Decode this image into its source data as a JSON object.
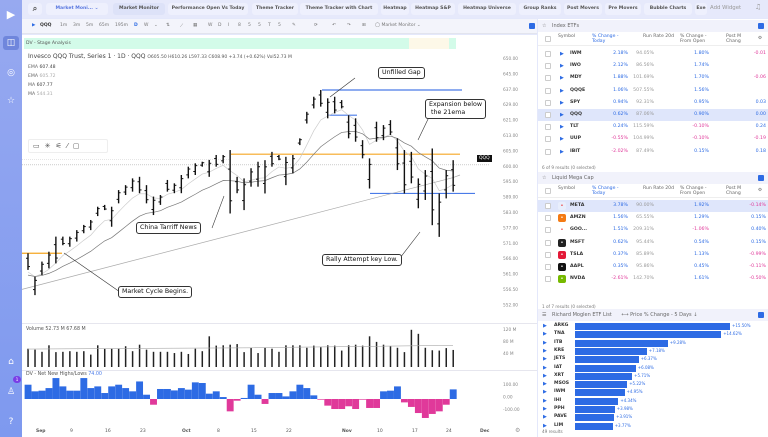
{
  "sidebar": {
    "items": [
      "logo",
      "chart-view",
      "target",
      "star",
      "gift",
      "user",
      "help"
    ],
    "badge": "1"
  },
  "topbar": {
    "search_icon": "search",
    "workspace": "Market Moni...",
    "tabs": [
      "Market Monitor",
      "Performance Open Vs Today",
      "Theme Tracker",
      "Theme Tracker with Chart",
      "Heatmap",
      "Heatmap S&P",
      "Heatmap Universe",
      "Group Ranks",
      "Post Movers",
      "Pre Movers",
      "Bubble Charts",
      "Exe"
    ],
    "add_widget": "Add Widget"
  },
  "toolbar": {
    "symbol": "QQQ",
    "intervals": [
      "1m",
      "3m",
      "5m",
      "65m",
      "195m",
      "D",
      "W"
    ],
    "active_interval": "D",
    "letters": [
      "W",
      "D",
      "I",
      "8",
      "5",
      "5",
      "T",
      "5"
    ],
    "layout": "Market Monitor"
  },
  "chart": {
    "study": "DV - Stage Analysis",
    "title": "Invesco QQQ Trust, Series 1 · 1D · QQQ",
    "ohlc": "O605.50 H610.26 L597.33 C608.90 +3.74 (+0.62%) Vol52.73 M",
    "indicators": [
      {
        "name": "EMA",
        "value": "607.48"
      },
      {
        "name": "EMA",
        "value": "605.72"
      },
      {
        "name": "MA",
        "value": "607.77"
      },
      {
        "name": "MA",
        "value": "544.31"
      }
    ],
    "price_tag": "QQQ",
    "price_labels": [
      "650.00",
      "645.00",
      "637.00",
      "629.00",
      "621.00",
      "613.00",
      "605.00",
      "600.00",
      "595.00",
      "589.00",
      "583.00",
      "577.00",
      "571.00",
      "566.00",
      "561.00",
      "556.50",
      "552.00"
    ],
    "annotations": {
      "gap": "Unfilled Gap",
      "expansion": "Expansion below\n the 21ema",
      "china": "China Tarriff News",
      "cycle": "Market Cycle Begins.",
      "rally": "Rally Attempt key Low."
    },
    "volume_label": "Volume  52.73 M  67.68 M",
    "volume_axis": [
      "120 M",
      "80 M",
      "40 M"
    ],
    "nhnl_label": "DV - Net New Highs/Lows",
    "nhnl_value": "74.00",
    "nhnl_axis": [
      "100.00",
      "0.00",
      "-100.00"
    ],
    "dates": [
      "Sep",
      "9",
      "16",
      "23",
      "Oct",
      "8",
      "15",
      "22",
      "Nov",
      "10",
      "17",
      "24",
      "Dec"
    ],
    "colors": {
      "up": "#2d6be4",
      "down": "#e0399a",
      "orange": "#f5a623",
      "blue": "#4a7be8"
    }
  },
  "chart_data": {
    "type": "ohlc",
    "bars_high_low": [
      [
        574.9,
        568.5
      ],
      [
        565.9,
        558.8
      ],
      [
        571.7,
        566.5
      ],
      [
        575.5,
        569.1
      ],
      [
        581.3,
        571
      ],
      [
        581.3,
        578
      ],
      [
        581.3,
        577.4
      ],
      [
        583.8,
        579.4
      ],
      [
        585.8,
        582.6
      ],
      [
        587.7,
        583.8
      ],
      [
        592.8,
        589.2
      ],
      [
        593.5,
        591.5
      ],
      [
        592.8,
        585.1
      ],
      [
        599.2,
        594.1
      ],
      [
        601.1,
        597.3
      ],
      [
        603.7,
        598.6
      ],
      [
        604.3,
        598
      ],
      [
        601.1,
        594.1
      ],
      [
        596.7,
        589.6
      ],
      [
        597.3,
        593.5
      ],
      [
        603.1,
        598.6
      ],
      [
        601.8,
        598
      ],
      [
        605,
        598
      ],
      [
        608.2,
        603.7
      ],
      [
        609.5,
        605
      ],
      [
        610.1,
        608.2
      ],
      [
        610.8,
        604.3
      ],
      [
        612.7,
        608.2
      ],
      [
        612.7,
        609.5
      ],
      [
        614.6,
        590.2
      ],
      [
        604.3,
        598
      ],
      [
        603.7,
        591.5
      ],
      [
        607.6,
        600.5
      ],
      [
        610.1,
        600.5
      ],
      [
        610.7,
        597.9
      ],
      [
        613.9,
        608.2
      ],
      [
        612.7,
        610.7
      ],
      [
        612,
        601.1
      ],
      [
        612.7,
        605.6
      ],
      [
        619.1,
        616.5
      ],
      [
        629.3,
        624.8
      ],
      [
        635.1,
        630.6
      ],
      [
        637.7,
        631.3
      ],
      [
        634.5,
        626.8
      ],
      [
        635.1,
        628.7
      ],
      [
        633.8,
        630.6
      ],
      [
        628,
        619.1
      ],
      [
        626.8,
        617.8
      ],
      [
        618.4,
        611.4
      ],
      [
        611.4,
        599.8
      ],
      [
        625.5,
        617.8
      ],
      [
        624.2,
        618.4
      ],
      [
        626.1,
        620.4
      ],
      [
        619.1,
        606.9
      ],
      [
        614.6,
        597.9
      ],
      [
        613.9,
        601.8
      ],
      [
        603.7,
        592.2
      ],
      [
        606.9,
        595.4
      ],
      [
        615.2,
        585.7
      ],
      [
        597.9,
        581.2
      ],
      [
        606.9,
        596
      ],
      [
        610.7,
        598.6
      ]
    ],
    "volume_m": [
      59,
      56,
      49,
      70,
      48,
      49,
      51,
      49,
      51,
      40,
      70,
      59,
      59,
      59,
      67,
      51,
      72,
      56,
      49,
      49,
      49,
      45,
      49,
      42,
      59,
      51,
      99,
      69,
      70,
      72,
      74,
      48,
      62,
      45,
      62,
      59,
      49,
      70,
      70,
      70,
      62,
      69,
      64,
      70,
      69,
      53,
      70,
      72,
      69,
      99,
      81,
      72,
      67,
      62,
      48,
      120,
      107,
      62,
      54,
      53,
      61,
      55
    ],
    "net_new_highs_lows": [
      110,
      59,
      64,
      84,
      161,
      97,
      64,
      64,
      161,
      84,
      97,
      46,
      97,
      110,
      84,
      59,
      135,
      33,
      -44,
      77,
      77,
      66,
      84,
      72,
      128,
      123,
      41,
      59,
      15,
      -95,
      -13,
      8,
      110,
      33,
      -38,
      46,
      46,
      20,
      59,
      110,
      84,
      28,
      -5,
      -51,
      -77,
      -77,
      -56,
      -77,
      -5,
      -69,
      -69,
      59,
      64,
      97,
      -26,
      -61,
      -108,
      -146,
      -115,
      -95,
      -44,
      74
    ],
    "levels": {
      "orange_high": 613,
      "orange_start": 574.9,
      "blue_gap_top": 637.7,
      "blue_gap_bottom": 628,
      "blue_support": 597.9
    },
    "ylim": [
      552,
      650
    ]
  },
  "index_etfs": {
    "title": "Index ETFs",
    "headers": [
      "Symbol",
      "% Change - Today",
      "Run Rate 20d",
      "% Change - From Open",
      "Post M Chang"
    ],
    "rows": [
      [
        "IWM",
        "2.18%",
        "94.05%",
        "1.80%",
        "-0.01"
      ],
      [
        "IWO",
        "2.12%",
        "86.56%",
        "1.74%",
        ""
      ],
      [
        "MDY",
        "1.88%",
        "101.69%",
        "1.70%",
        "-0.06"
      ],
      [
        "QQQE",
        "1.06%",
        "507.55%",
        "1.56%",
        ""
      ],
      [
        "SPY",
        "0.94%",
        "92.31%",
        "0.95%",
        "0.03"
      ],
      [
        "QQQ",
        "0.62%",
        "87.06%",
        "0.90%",
        "0.00"
      ],
      [
        "TLT",
        "0.24%",
        "115.59%",
        "-0.10%",
        "0.24"
      ],
      [
        "UUP",
        "-0.55%",
        "104.99%",
        "-0.10%",
        "-0.19"
      ],
      [
        "IBIT",
        "-2.02%",
        "87.49%",
        "0.15%",
        "0.18"
      ]
    ],
    "footer": "6 of 9 results (0 selected)"
  },
  "mega_cap": {
    "title": "Liquid Mega Cap",
    "headers": [
      "Symbol",
      "% Change - Today",
      "Run Rate 20d",
      "% Change - From Open",
      "Post M Chang"
    ],
    "rows": [
      [
        "META",
        "3.78%",
        "90.00%",
        "1.92%",
        "-0.14%"
      ],
      [
        "AMZN",
        "1.56%",
        "65.55%",
        "1.29%",
        "0.15%"
      ],
      [
        "GOO...",
        "1.51%",
        "209.31%",
        "-1.06%",
        "0.40%"
      ],
      [
        "MSFT",
        "0.62%",
        "95.44%",
        "0.54%",
        "0.15%"
      ],
      [
        "TSLA",
        "0.37%",
        "85.89%",
        "1.13%",
        "-0.99%"
      ],
      [
        "AAPL",
        "0.35%",
        "95.86%",
        "0.45%",
        "-0.11%"
      ],
      [
        "NVDA",
        "-2.61%",
        "142.70%",
        "1.61%",
        "-0.50%"
      ]
    ],
    "logo_colors": [
      "#e8eefc",
      "#f47a14",
      "#ffffff",
      "#222222",
      "#e31937",
      "#111111",
      "#76b900"
    ],
    "footer": "1 of 7 results (0 selected)"
  },
  "etf_list": {
    "title": "Richard Moglen ETF List",
    "metric": "Price % Change - 5 Days",
    "rows": [
      [
        "ARKG",
        "+15.50%",
        15.5
      ],
      [
        "TNA",
        "+14.62%",
        14.62
      ],
      [
        "ITB",
        "+9.28%",
        9.28
      ],
      [
        "KRE",
        "+7.18%",
        7.18
      ],
      [
        "JETS",
        "+6.37%",
        6.37
      ],
      [
        "IAT",
        "+6.08%",
        6.08
      ],
      [
        "XRT",
        "+5.71%",
        5.71
      ],
      [
        "MSOS",
        "+5.22%",
        5.22
      ],
      [
        "IWM",
        "+4.95%",
        4.95
      ],
      [
        "IHI",
        "+4.34%",
        4.34
      ],
      [
        "PPH",
        "+3.98%",
        3.98
      ],
      [
        "PAVE",
        "+3.91%",
        3.91
      ],
      [
        "LIM",
        "+3.77%",
        3.77
      ]
    ],
    "footer": "49 results"
  }
}
